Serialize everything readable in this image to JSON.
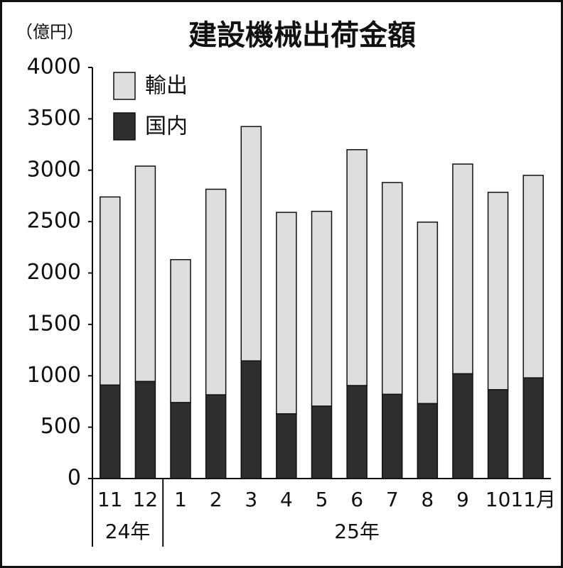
{
  "chart_data": {
    "type": "stacked-bar",
    "title": "建設機械出荷金額",
    "y_label": "（億円）",
    "categories": [
      "11",
      "12",
      "1",
      "2",
      "3",
      "4",
      "5",
      "6",
      "7",
      "8",
      "9",
      "10",
      "11月"
    ],
    "category_groups": [
      "24年",
      "25年"
    ],
    "series": [
      {
        "name": "国内",
        "color": "#2e2e2e",
        "values": [
          910,
          945,
          740,
          815,
          1145,
          630,
          705,
          905,
          820,
          730,
          1020,
          865,
          980
        ]
      },
      {
        "name": "輸出",
        "color": "#dedede",
        "values": [
          1830,
          2095,
          1390,
          2000,
          2280,
          1960,
          1895,
          2295,
          2060,
          1765,
          2040,
          1920,
          1970
        ]
      }
    ],
    "ylim": [
      0,
      4000
    ],
    "yticks": [
      0,
      500,
      1000,
      1500,
      2000,
      2500,
      3000,
      3500,
      4000
    ]
  }
}
